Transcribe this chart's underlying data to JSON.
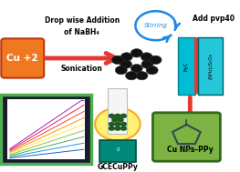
{
  "fig_width": 2.63,
  "fig_height": 1.89,
  "dpi": 100,
  "bg_color": "#ffffff",
  "cu_box_color": "#f07820",
  "cu_box_text": "Cu +2",
  "top_text1": "Drop wise Addition",
  "top_text2": "of NaBH₄",
  "top_text3": "Sonication",
  "stirring_text": "Stirring",
  "add_pvp_text": "Add pvp40",
  "gce_text": "GCECuPPy",
  "cu_nps_text": "Cu NPs–PPy",
  "cyan_box_color": "#00bcd4",
  "green_box_color": "#7cb342",
  "monitor_frame_color": "#4caf50",
  "teal_box_color": "#00897b",
  "yellow_circle_color": "#fff176",
  "red_arrow_color": "#e53935",
  "blue_arrow_color": "#1e88e5",
  "sonication_text": "Sonication",
  "pyc_text": "PyC",
  "nh4_text": "(NH₄)₂S₂O₈"
}
